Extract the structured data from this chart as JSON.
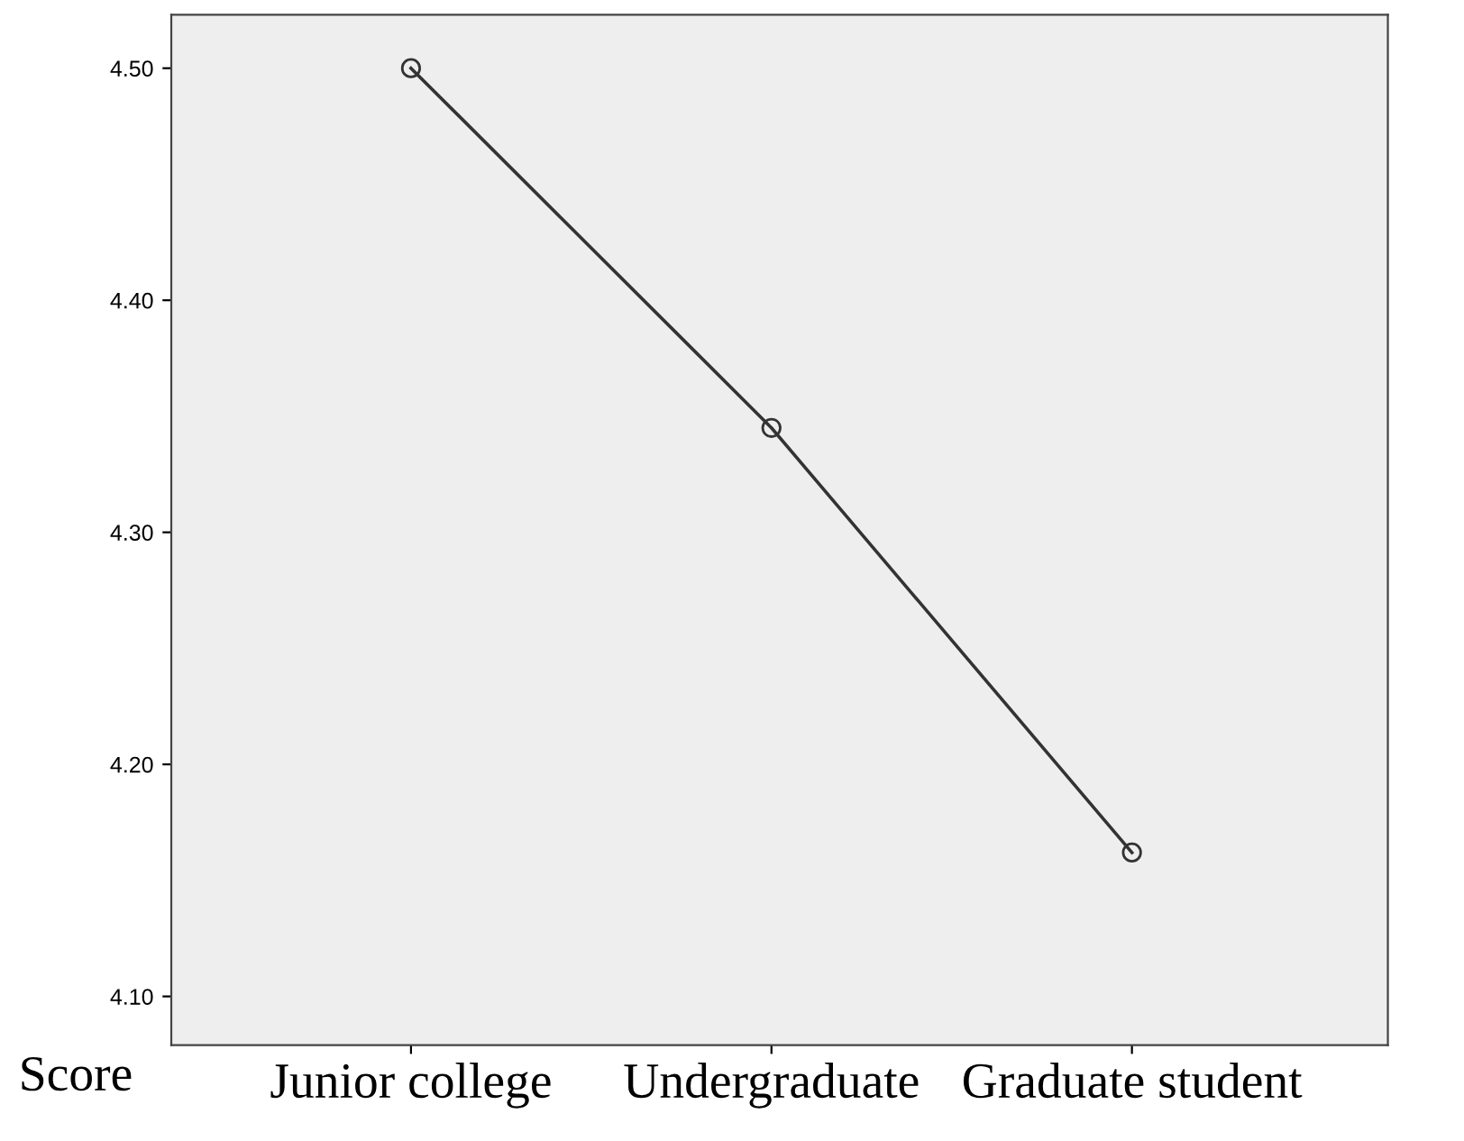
{
  "chart_data": {
    "type": "line",
    "xlabel": "Score",
    "categories": [
      "Junior college",
      "Undergraduate",
      "Graduate student"
    ],
    "values": [
      4.5,
      4.345,
      4.162
    ],
    "color": "#333333",
    "ylim": [
      4.079,
      4.523
    ],
    "yticks": [
      {
        "value": 4.1,
        "label": "4.10"
      },
      {
        "value": 4.2,
        "label": "4.20"
      },
      {
        "value": 4.3,
        "label": "4.30"
      },
      {
        "value": 4.4,
        "label": "4.40"
      },
      {
        "value": 4.5,
        "label": "4.50"
      }
    ],
    "grid": false,
    "marker": "circle",
    "line_style": "solid"
  }
}
